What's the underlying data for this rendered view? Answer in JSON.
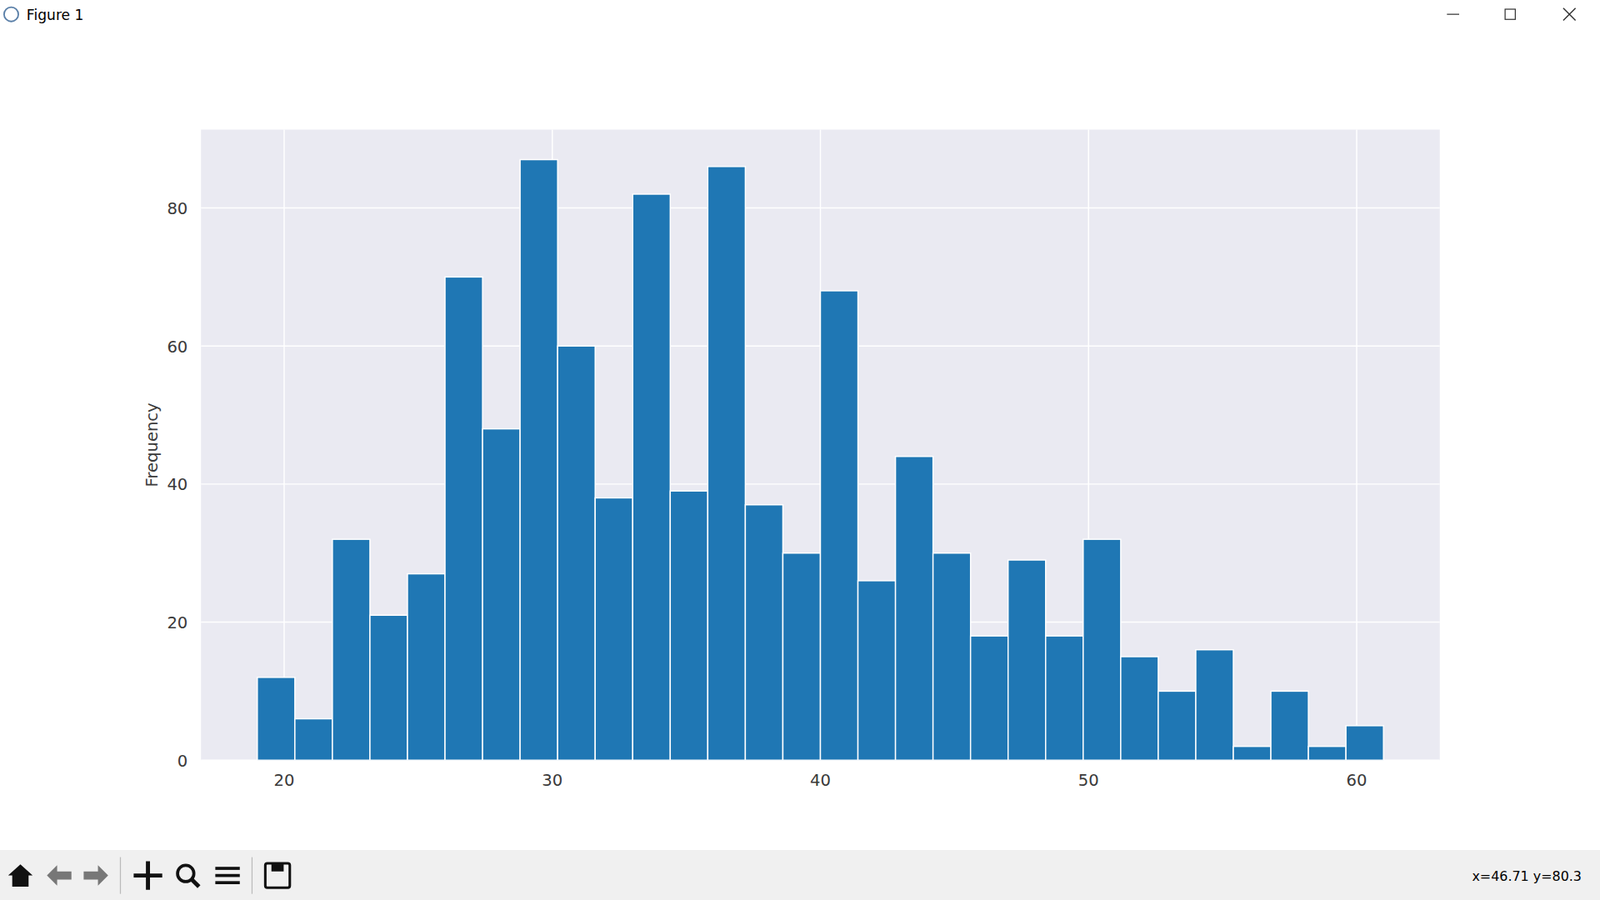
{
  "window": {
    "title": "Figure 1",
    "status": "x=46.71 y=80.3"
  },
  "chart_data": {
    "type": "histogram",
    "y_label": "Frequency",
    "bins": [
      19,
      20.4,
      21.8,
      23.2,
      24.6,
      26,
      27.4,
      28.8,
      30.2,
      31.6,
      33,
      34.4,
      35.8,
      37.2,
      38.6,
      40,
      41.4,
      42.8,
      44.2,
      45.6,
      47,
      48.4,
      49.8,
      51.2,
      52.6,
      54,
      55.4,
      56.8,
      58.2,
      59.6,
      61
    ],
    "values": [
      12,
      6,
      32,
      21,
      27,
      70,
      48,
      87,
      60,
      38,
      82,
      39,
      86,
      37,
      30,
      68,
      26,
      44,
      30,
      18,
      29,
      18,
      32,
      15,
      10,
      16,
      2,
      10,
      2,
      5
    ],
    "color": "#1f77b4",
    "xlim": [
      16.9,
      63.1
    ],
    "xticks": [
      20,
      30,
      40,
      50,
      60
    ],
    "ylim": [
      0,
      91.35
    ],
    "yticks": [
      0,
      20,
      40,
      60,
      80
    ],
    "grid": true
  }
}
